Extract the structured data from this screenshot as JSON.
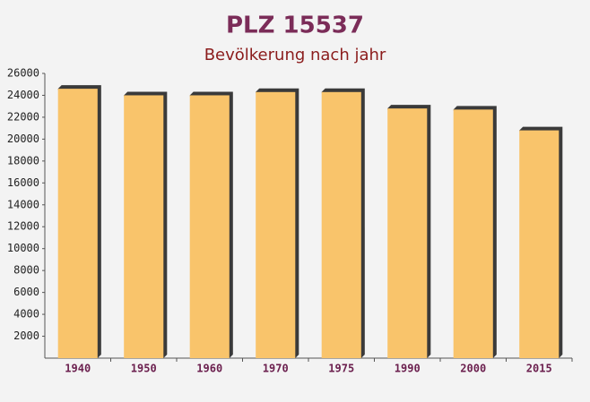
{
  "chart_data": {
    "type": "bar",
    "title": "PLZ 15537",
    "subtitle": "Bevölkerung nach jahr",
    "categories": [
      "1940",
      "1950",
      "1960",
      "1970",
      "1975",
      "1990",
      "2000",
      "2015"
    ],
    "values": [
      24600,
      24000,
      24000,
      24300,
      24300,
      22800,
      22700,
      20800
    ],
    "color": "#f9c46b",
    "ylim": [
      0,
      26000
    ],
    "yticks": [
      2000,
      4000,
      6000,
      8000,
      10000,
      12000,
      14000,
      16000,
      18000,
      20000,
      22000,
      24000,
      26000
    ],
    "grid": false
  }
}
